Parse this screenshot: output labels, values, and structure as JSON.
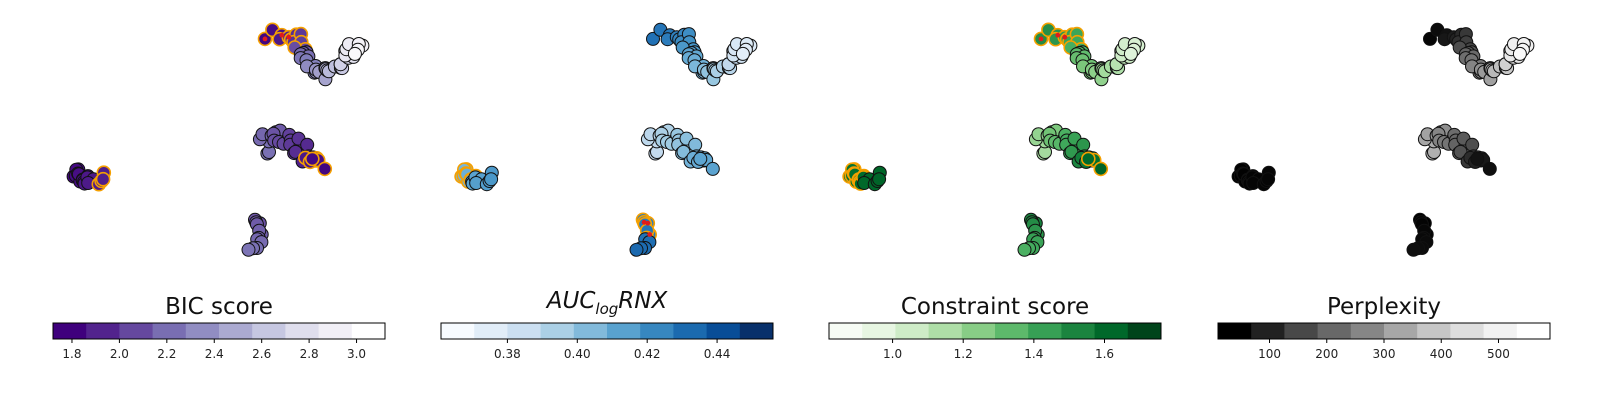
{
  "chart_data": [
    {
      "type": "scatter",
      "title": "BIC score",
      "colormap": [
        "#3f007d",
        "#54278f",
        "#6a51a3",
        "#807dba",
        "#9e9ac8",
        "#bcbddc",
        "#dadaeb",
        "#efedf5",
        "#ffffff"
      ],
      "colorbar": {
        "range": [
          1.72,
          3.12
        ],
        "ticks": [
          "1.8",
          "2.0",
          "2.2",
          "2.4",
          "2.6",
          "2.8",
          "3.0"
        ],
        "tick_values": [
          1.8,
          2.0,
          2.2,
          2.4,
          2.6,
          2.8,
          3.0
        ]
      },
      "highlights": {
        "orange_outline": [
          "top-left of upper cluster",
          "right end of middle cluster",
          "right edge of left cluster"
        ],
        "red_marks": [
          "upper cluster"
        ]
      }
    },
    {
      "type": "scatter",
      "title": "AUC_logRNX",
      "title_main": "AUC",
      "title_sub": "log",
      "title_tail": "RNX",
      "colormap": [
        "#f7fbff",
        "#deebf7",
        "#c6dbef",
        "#9ecae1",
        "#6baed6",
        "#4292c6",
        "#2171b5",
        "#08519c",
        "#08306b"
      ],
      "colorbar": {
        "range": [
          0.361,
          0.456
        ],
        "ticks": [
          "0.38",
          "0.40",
          "0.42",
          "0.44"
        ],
        "tick_values": [
          0.38,
          0.4,
          0.42,
          0.44
        ]
      },
      "highlights": {
        "orange_outline": [
          "left cluster",
          "bottom cluster"
        ],
        "red_marks": [
          "bottom cluster"
        ]
      }
    },
    {
      "type": "scatter",
      "title": "Constraint score",
      "colormap": [
        "#f7fcf5",
        "#e5f5e0",
        "#c7e9c0",
        "#a1d99b",
        "#74c476",
        "#41ab5d",
        "#238b45",
        "#006d2c",
        "#00441b"
      ],
      "colorbar": {
        "range": [
          0.82,
          1.76
        ],
        "ticks": [
          "1.0",
          "1.2",
          "1.4",
          "1.6"
        ],
        "tick_values": [
          1.0,
          1.2,
          1.4,
          1.6
        ]
      },
      "highlights": {
        "orange_outline": [
          "top-left of upper cluster",
          "left cluster",
          "right end of middle cluster"
        ],
        "red_marks": [
          "upper cluster"
        ]
      }
    },
    {
      "type": "scatter",
      "title": "Perplexity",
      "colormap": [
        "#000000",
        "#252525",
        "#525252",
        "#737373",
        "#969696",
        "#bdbdbd",
        "#d9d9d9",
        "#f0f0f0",
        "#ffffff"
      ],
      "colorbar": {
        "range": [
          10,
          590
        ],
        "ticks": [
          "100",
          "200",
          "300",
          "400",
          "500"
        ],
        "tick_values": [
          100,
          200,
          300,
          400,
          500
        ]
      },
      "highlights": {
        "orange_outline": [],
        "red_marks": []
      }
    }
  ]
}
